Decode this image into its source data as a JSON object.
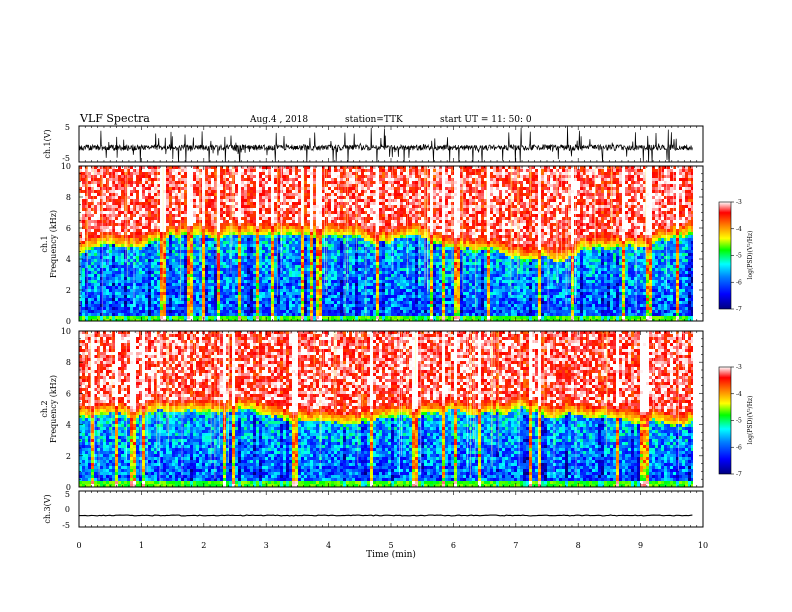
{
  "header": {
    "title": "VLF Spectra",
    "date": "Aug.4 , 2018",
    "station": "station=TTK",
    "start_time": "start UT =  11: 50: 0"
  },
  "colors": {
    "scale": [
      "#000080",
      "#0000ff",
      "#0080ff",
      "#00ffff",
      "#00ff00",
      "#ffff00",
      "#ff8000",
      "#ff0000",
      "#ffffff"
    ]
  },
  "chart_data": [
    {
      "type": "line",
      "id": "ch1-waveform",
      "ylabel": "ch.1(V)",
      "ylim": [
        -5,
        5
      ],
      "yticks": [
        5,
        -5
      ],
      "xlim": [
        0,
        10
      ],
      "description_points": "dense noisy waveform centred near -1 V with spikes to about ±5 V",
      "baseline": -1.0
    },
    {
      "type": "heatmap",
      "id": "ch1-spectrogram",
      "ylabel": "ch.1\nFrequency (kHz)",
      "ylabel_lines": [
        "ch.1",
        "Frequency (kHz)"
      ],
      "ylim": [
        0,
        10
      ],
      "yticks": [
        0,
        2,
        4,
        6,
        8,
        10
      ],
      "xlim": [
        0,
        10
      ],
      "data_end_min": 9.83,
      "transition_freq_khz": 4.5,
      "colorbar": {
        "label": "log(PSD)(V²/Hz)",
        "range": [
          -7,
          -3
        ],
        "ticks": [
          -3,
          -4,
          -5,
          -6,
          -7
        ]
      }
    },
    {
      "type": "heatmap",
      "id": "ch2-spectrogram",
      "ylabel": "ch.2\nFrequency (kHz)",
      "ylabel_lines": [
        "ch.2",
        "Frequency (kHz)"
      ],
      "ylim": [
        0,
        10
      ],
      "yticks": [
        0,
        2,
        4,
        6,
        8,
        10
      ],
      "xlim": [
        0,
        10
      ],
      "data_end_min": 9.83,
      "transition_freq_khz": 4.5,
      "colorbar": {
        "label": "log(PSD)(V²/Hz)",
        "range": [
          -7,
          -3
        ],
        "ticks": [
          -3,
          -4,
          -5,
          -6,
          -7
        ]
      }
    },
    {
      "type": "line",
      "id": "ch3-waveform",
      "ylabel": "ch.3(V)",
      "ylim": [
        -5,
        5
      ],
      "yticks": [
        5,
        0,
        -5
      ],
      "ytick_labels": [
        "5",
        "0",
        "-5"
      ],
      "xlim": [
        0,
        10
      ],
      "baseline": -1.8
    }
  ],
  "xaxis": {
    "label": "Time (min)",
    "ticks": [
      0,
      1,
      2,
      3,
      4,
      5,
      6,
      7,
      8,
      9,
      10
    ]
  }
}
